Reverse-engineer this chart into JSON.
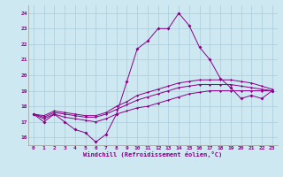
{
  "xlabel": "Windchill (Refroidissement éolien,°C)",
  "bg_color": "#cde8f0",
  "line_color": "#880088",
  "grid_color": "#aaccdd",
  "xlim": [
    -0.5,
    23.5
  ],
  "ylim": [
    15.5,
    24.5
  ],
  "yticks": [
    16,
    17,
    18,
    19,
    20,
    21,
    22,
    23,
    24
  ],
  "xticks": [
    0,
    1,
    2,
    3,
    4,
    5,
    6,
    7,
    8,
    9,
    10,
    11,
    12,
    13,
    14,
    15,
    16,
    17,
    18,
    19,
    20,
    21,
    22,
    23
  ],
  "hours": [
    0,
    1,
    2,
    3,
    4,
    5,
    6,
    7,
    8,
    9,
    10,
    11,
    12,
    13,
    14,
    15,
    16,
    17,
    18,
    19,
    20,
    21,
    22,
    23
  ],
  "line1": [
    17.5,
    17.0,
    17.5,
    17.0,
    16.5,
    16.3,
    15.7,
    16.2,
    17.5,
    19.6,
    21.7,
    22.2,
    23.0,
    23.0,
    24.0,
    23.2,
    21.8,
    21.0,
    19.8,
    19.2,
    18.5,
    18.7,
    18.5,
    19.0
  ],
  "line2": [
    17.5,
    17.2,
    17.5,
    17.3,
    17.2,
    17.1,
    17.0,
    17.2,
    17.5,
    17.7,
    17.9,
    18.0,
    18.2,
    18.4,
    18.6,
    18.8,
    18.9,
    19.0,
    19.0,
    19.0,
    19.0,
    19.0,
    19.0,
    19.0
  ],
  "line3": [
    17.5,
    17.3,
    17.6,
    17.5,
    17.4,
    17.3,
    17.3,
    17.5,
    17.8,
    18.1,
    18.4,
    18.6,
    18.8,
    19.0,
    19.2,
    19.3,
    19.4,
    19.4,
    19.4,
    19.4,
    19.3,
    19.2,
    19.1,
    19.0
  ],
  "line4": [
    17.5,
    17.4,
    17.7,
    17.6,
    17.5,
    17.4,
    17.4,
    17.6,
    18.0,
    18.3,
    18.7,
    18.9,
    19.1,
    19.3,
    19.5,
    19.6,
    19.7,
    19.7,
    19.7,
    19.7,
    19.6,
    19.5,
    19.3,
    19.1
  ]
}
